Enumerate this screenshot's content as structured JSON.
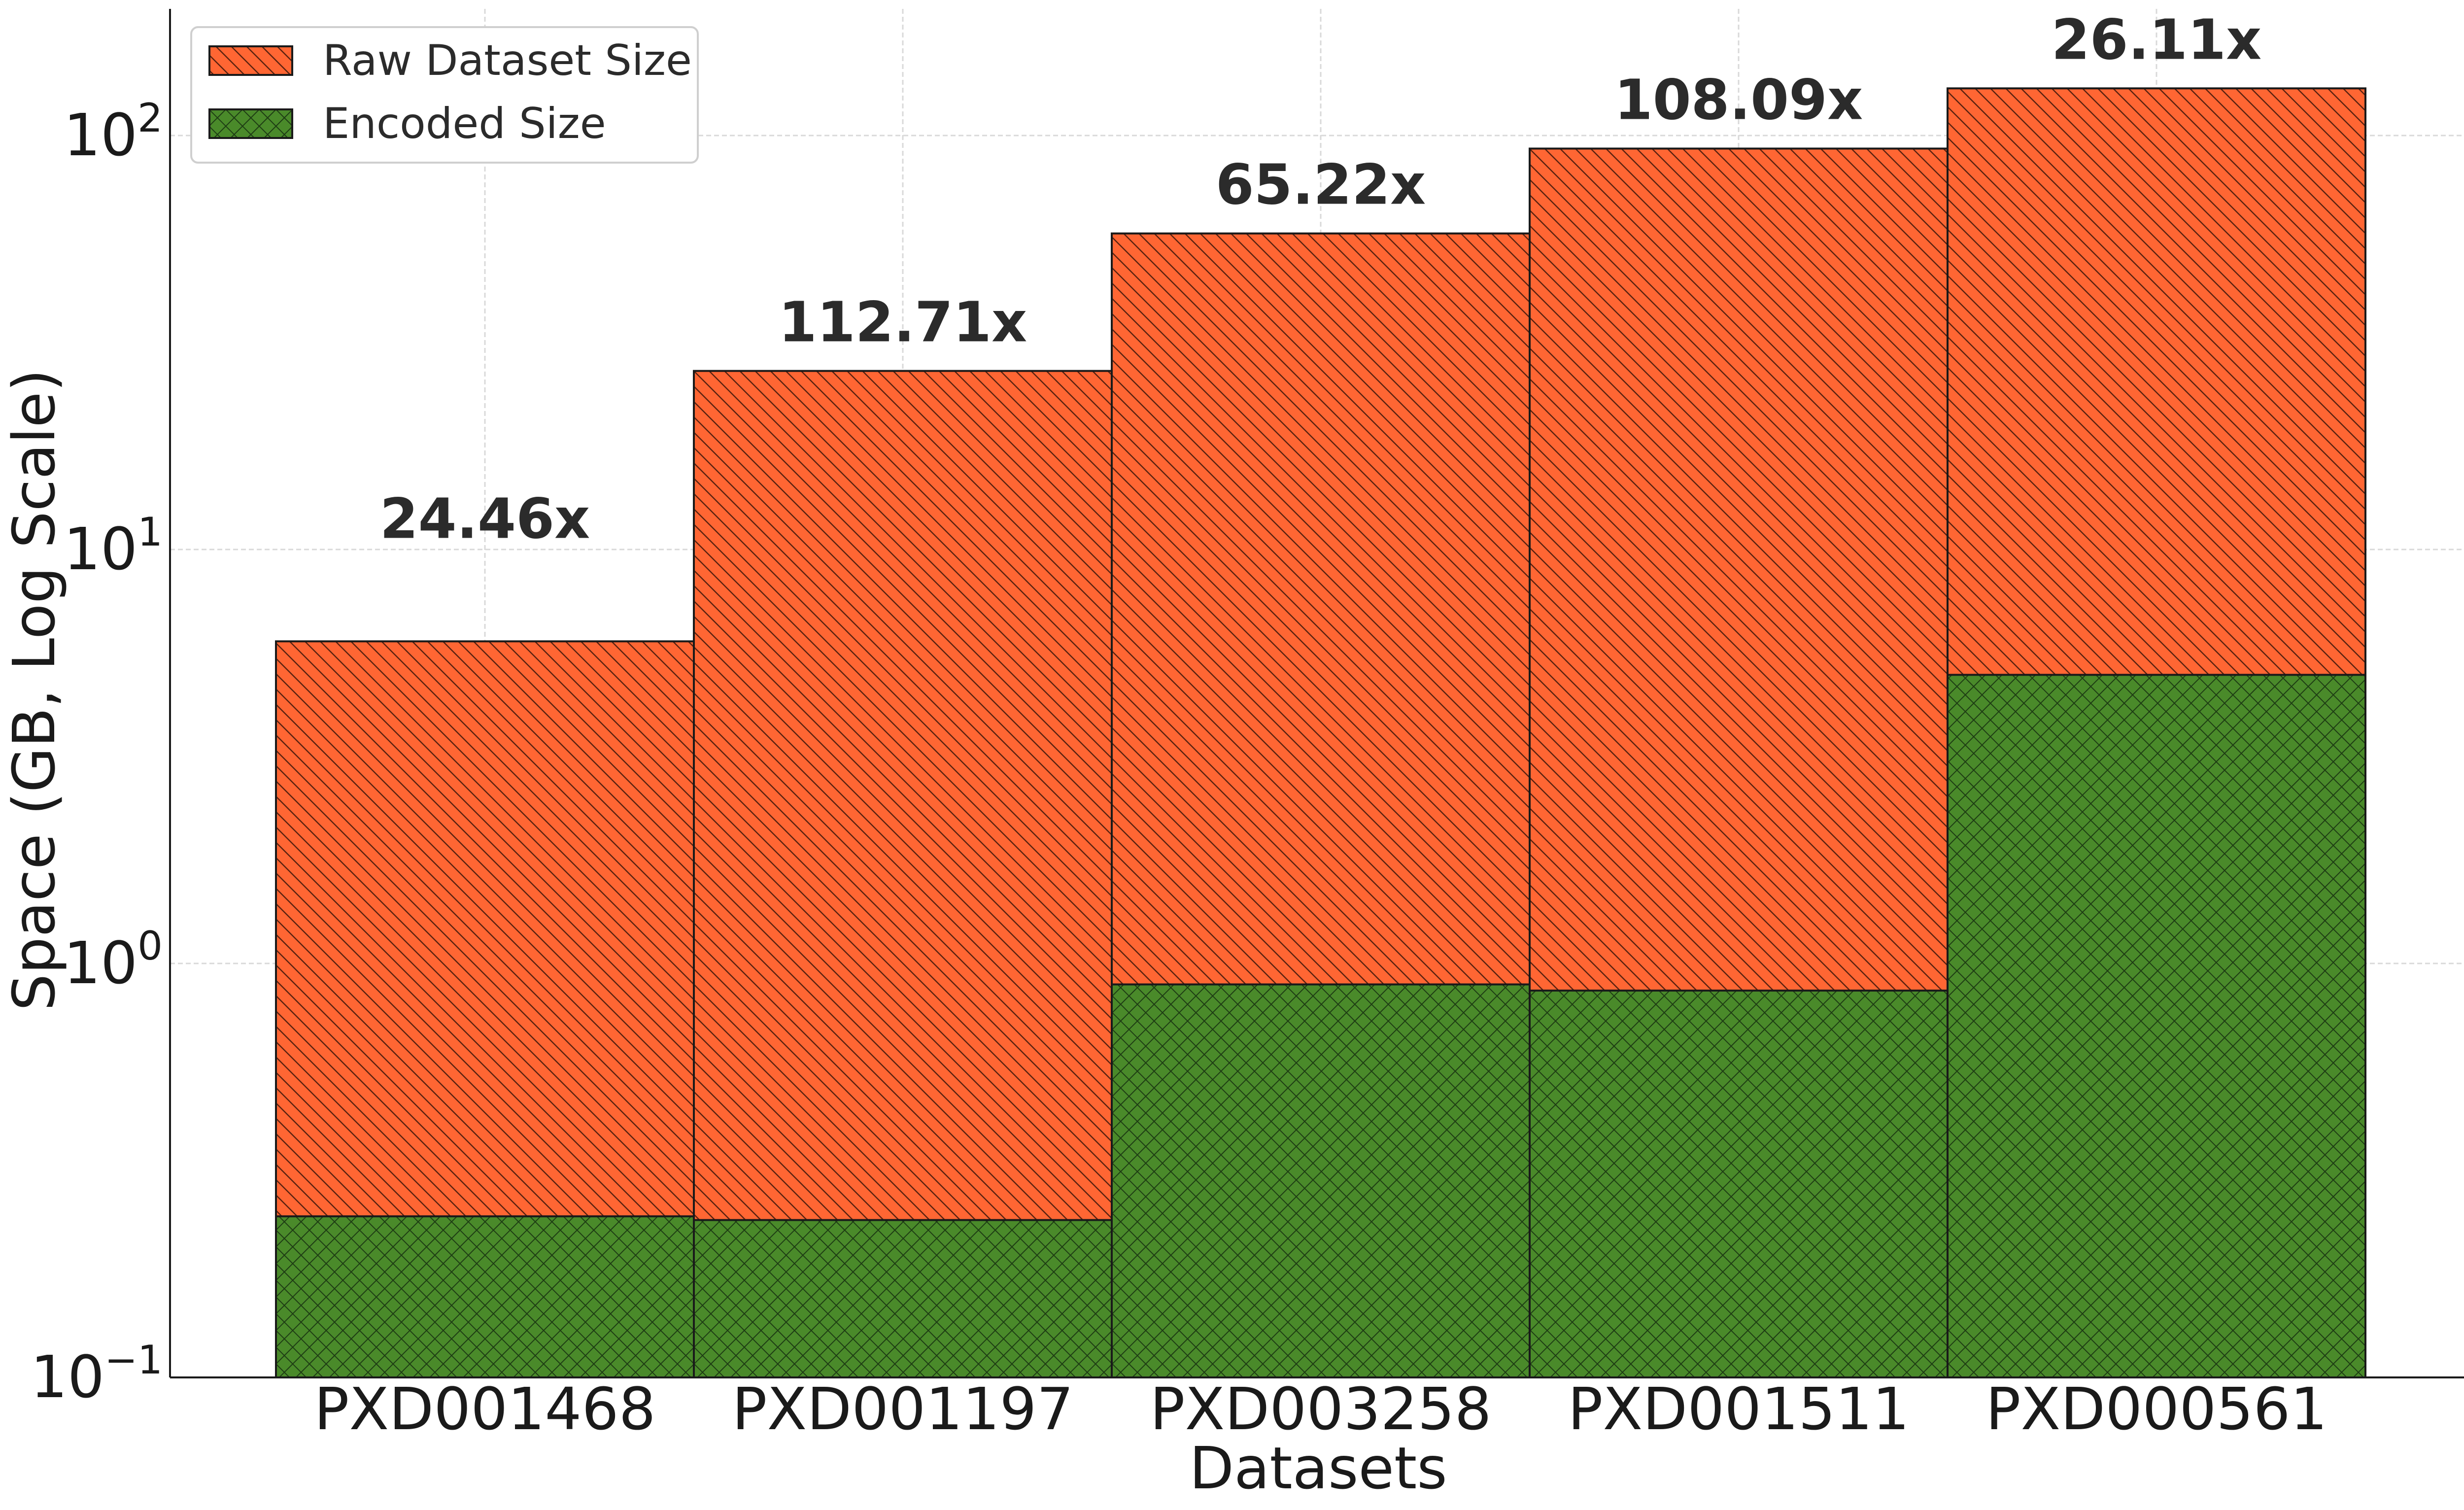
{
  "chart_data": {
    "type": "bar",
    "stacked": true,
    "categories": [
      "PXD001468",
      "PXD001197",
      "PXD003258",
      "PXD001511",
      "PXD000561"
    ],
    "series": [
      {
        "name": "Raw Dataset Size",
        "values": [
          6.0,
          27.0,
          58.0,
          93.0,
          130.0
        ],
        "color": "#ff6633",
        "hatch": "diagonal"
      },
      {
        "name": "Encoded Size",
        "values": [
          0.245,
          0.24,
          0.89,
          0.86,
          4.98
        ],
        "color": "#4a8a2a",
        "hatch": "crosshatch"
      }
    ],
    "annotations": [
      "24.46x",
      "112.71x",
      "65.22x",
      "108.09x",
      "26.11x"
    ],
    "xlabel": "Datasets",
    "ylabel": "Space (GB, Log Scale)",
    "yscale": "log",
    "ylim": [
      0.1,
      200
    ],
    "yticks": [
      {
        "base": "10",
        "exp": "−1",
        "value": 0.1
      },
      {
        "base": "10",
        "exp": "0",
        "value": 1
      },
      {
        "base": "10",
        "exp": "1",
        "value": 10
      },
      {
        "base": "10",
        "exp": "2",
        "value": 100
      }
    ],
    "grid": true,
    "legend": "top-left"
  }
}
